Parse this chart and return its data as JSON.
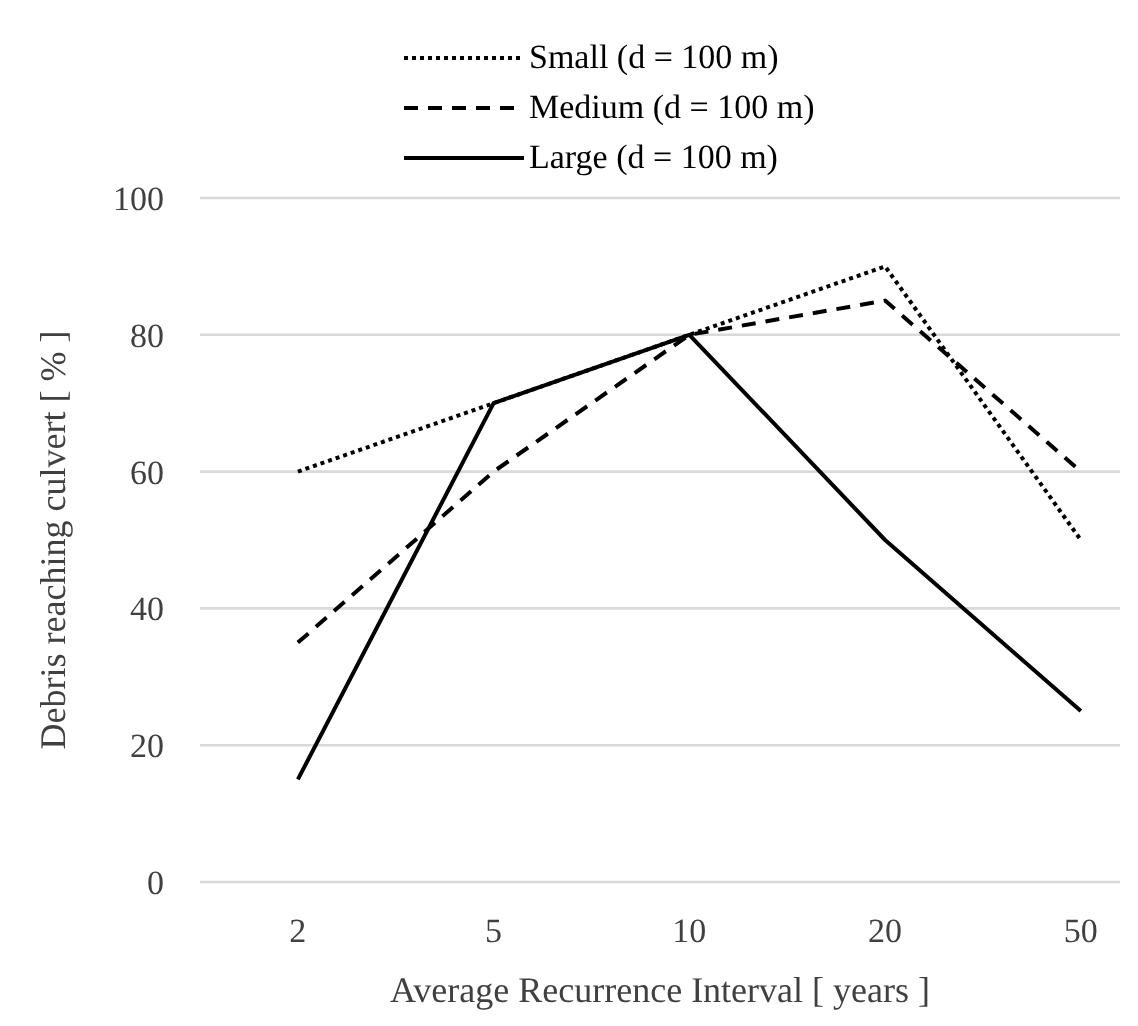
{
  "chart_data": {
    "type": "line",
    "xlabel": "Average Recurrence Interval  [ years ]",
    "ylabel": "Debris reaching culvert [ % ]",
    "categories": [
      "2",
      "5",
      "10",
      "20",
      "50"
    ],
    "series": [
      {
        "name": "Small (d = 100 m)",
        "color": "#000000",
        "line_style": "dotted",
        "values": [
          60,
          70,
          80,
          90,
          50
        ]
      },
      {
        "name": "Medium (d = 100 m)",
        "color": "#000000",
        "line_style": "dashed",
        "values": [
          35,
          60,
          80,
          85,
          60
        ]
      },
      {
        "name": "Large (d = 100 m)",
        "color": "#000000",
        "line_style": "solid",
        "values": [
          15,
          70,
          80,
          50,
          25
        ]
      }
    ],
    "ylim": [
      0,
      100
    ],
    "yticks": [
      0,
      20,
      40,
      60,
      80,
      100
    ],
    "grid": "y",
    "legend": "top",
    "marker": "none"
  }
}
